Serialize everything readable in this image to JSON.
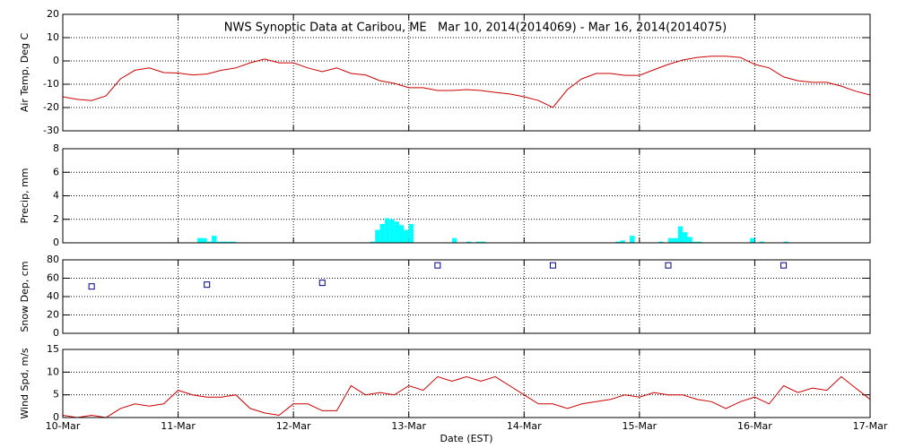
{
  "chart_data": [
    {
      "type": "line",
      "title": "NWS Synoptic Data at Caribou, ME   Mar 10, 2014(2014069) - Mar 16, 2014(2014075)",
      "ylabel": "Air Temp, Deg C",
      "xlim": [
        0,
        168
      ],
      "xticks": [
        0,
        24,
        48,
        72,
        96,
        120,
        144,
        168
      ],
      "ylim": [
        -30,
        20
      ],
      "yticks": [
        -30,
        -20,
        -10,
        0,
        10,
        20
      ],
      "grid": true,
      "series": [
        {
          "color": "#cc0000",
          "x": [
            0,
            3,
            6,
            9,
            12,
            15,
            18,
            21,
            24,
            27,
            30,
            33,
            36,
            39,
            42,
            45,
            48,
            51,
            54,
            57,
            60,
            63,
            66,
            69,
            72,
            75,
            78,
            81,
            84,
            87,
            90,
            93,
            96,
            99,
            102,
            105,
            108,
            111,
            114,
            117,
            120,
            123,
            126,
            129,
            132,
            135,
            138,
            141,
            144,
            147,
            150,
            153,
            156,
            159,
            162,
            165,
            168
          ],
          "values": [
            -15.4,
            -16.5,
            -17,
            -15,
            -7.7,
            -4,
            -3,
            -5,
            -5.2,
            -6,
            -5.6,
            -4,
            -3,
            -0.8,
            0.8,
            -0.8,
            -0.8,
            -3,
            -4.6,
            -3,
            -5.4,
            -6,
            -8.5,
            -9.6,
            -11.5,
            -11.5,
            -12.7,
            -12.7,
            -12.3,
            -12.7,
            -13.5,
            -14.2,
            -15.4,
            -17,
            -20,
            -12.3,
            -7.7,
            -5.4,
            -5.4,
            -6.2,
            -6.2,
            -3.8,
            -1.5,
            0.4,
            1.5,
            2,
            2,
            1.5,
            -1.5,
            -3,
            -6.9,
            -8.5,
            -9.2,
            -9.2,
            -10.8,
            -13,
            -14.6
          ]
        }
      ]
    },
    {
      "type": "bar",
      "ylabel": "Precip, mm",
      "xlim": [
        0,
        168
      ],
      "xticks": [
        0,
        24,
        48,
        72,
        96,
        120,
        144,
        168
      ],
      "ylim": [
        0,
        8
      ],
      "yticks": [
        0,
        2,
        4,
        6,
        8
      ],
      "grid": true,
      "series": [
        {
          "color": "#00ffff",
          "x": [
            28,
            29,
            30,
            31,
            32,
            33,
            34,
            35,
            64,
            65,
            66,
            67,
            68,
            69,
            70,
            71,
            72,
            81,
            84,
            86,
            87,
            115,
            116,
            118,
            124,
            126,
            127,
            128,
            129,
            130,
            131,
            132,
            143,
            145,
            150
          ],
          "values": [
            0.4,
            0.4,
            0.1,
            0.6,
            0.1,
            0.1,
            0.1,
            0.1,
            0.1,
            1.1,
            1.6,
            2.1,
            2.0,
            1.8,
            1.5,
            1.1,
            1.6,
            0.4,
            0.1,
            0.1,
            0.1,
            0.1,
            0.2,
            0.6,
            0.1,
            0.4,
            0.4,
            1.4,
            0.9,
            0.5,
            0.1,
            0.1,
            0.4,
            0.1,
            0.1
          ]
        }
      ]
    },
    {
      "type": "scatter",
      "ylabel": "Snow Dep, cm",
      "xlim": [
        0,
        168
      ],
      "xticks": [
        0,
        24,
        48,
        72,
        96,
        120,
        144,
        168
      ],
      "ylim": [
        0,
        80
      ],
      "yticks": [
        0,
        20,
        40,
        60,
        80
      ],
      "grid": true,
      "series": [
        {
          "color": "#000080",
          "x": [
            6,
            30,
            54,
            78,
            102,
            126,
            150
          ],
          "values": [
            51,
            53,
            55,
            74,
            74,
            74,
            74
          ]
        }
      ]
    },
    {
      "type": "line",
      "ylabel": "Wind Spd, m/s",
      "xlabel": "Date (EST)",
      "xlim": [
        0,
        168
      ],
      "xticks": [
        {
          "value": 0,
          "label": "10-Mar"
        },
        {
          "value": 24,
          "label": "11-Mar"
        },
        {
          "value": 48,
          "label": "12-Mar"
        },
        {
          "value": 72,
          "label": "13-Mar"
        },
        {
          "value": 96,
          "label": "14-Mar"
        },
        {
          "value": 120,
          "label": "15-Mar"
        },
        {
          "value": 144,
          "label": "16-Mar"
        },
        {
          "value": 168,
          "label": "17-Mar"
        }
      ],
      "ylim": [
        0,
        15
      ],
      "yticks": [
        0,
        5,
        10,
        15
      ],
      "grid": true,
      "series": [
        {
          "color": "#cc0000",
          "x": [
            0,
            3,
            6,
            9,
            12,
            15,
            18,
            21,
            24,
            27,
            30,
            33,
            36,
            39,
            42,
            45,
            48,
            51,
            54,
            57,
            60,
            63,
            66,
            69,
            72,
            75,
            78,
            81,
            84,
            87,
            90,
            93,
            96,
            99,
            102,
            105,
            108,
            111,
            114,
            117,
            120,
            123,
            126,
            129,
            132,
            135,
            138,
            141,
            144,
            147,
            150,
            153,
            156,
            159,
            162,
            165,
            168
          ],
          "values": [
            0.5,
            0,
            0.5,
            0,
            2,
            3,
            2.5,
            3,
            6,
            5,
            4.5,
            4.5,
            5,
            2,
            1,
            0.5,
            3,
            3,
            1.5,
            1.5,
            7,
            5,
            5.5,
            5,
            7,
            6,
            9,
            8,
            9,
            8,
            9,
            7,
            5,
            3,
            3,
            2,
            3,
            3.5,
            4,
            5,
            4.5,
            5.5,
            5,
            5,
            4,
            3.5,
            2,
            3.5,
            4.5,
            3,
            7,
            5.5,
            6.5,
            6,
            9,
            6.5,
            4
          ]
        }
      ]
    }
  ]
}
